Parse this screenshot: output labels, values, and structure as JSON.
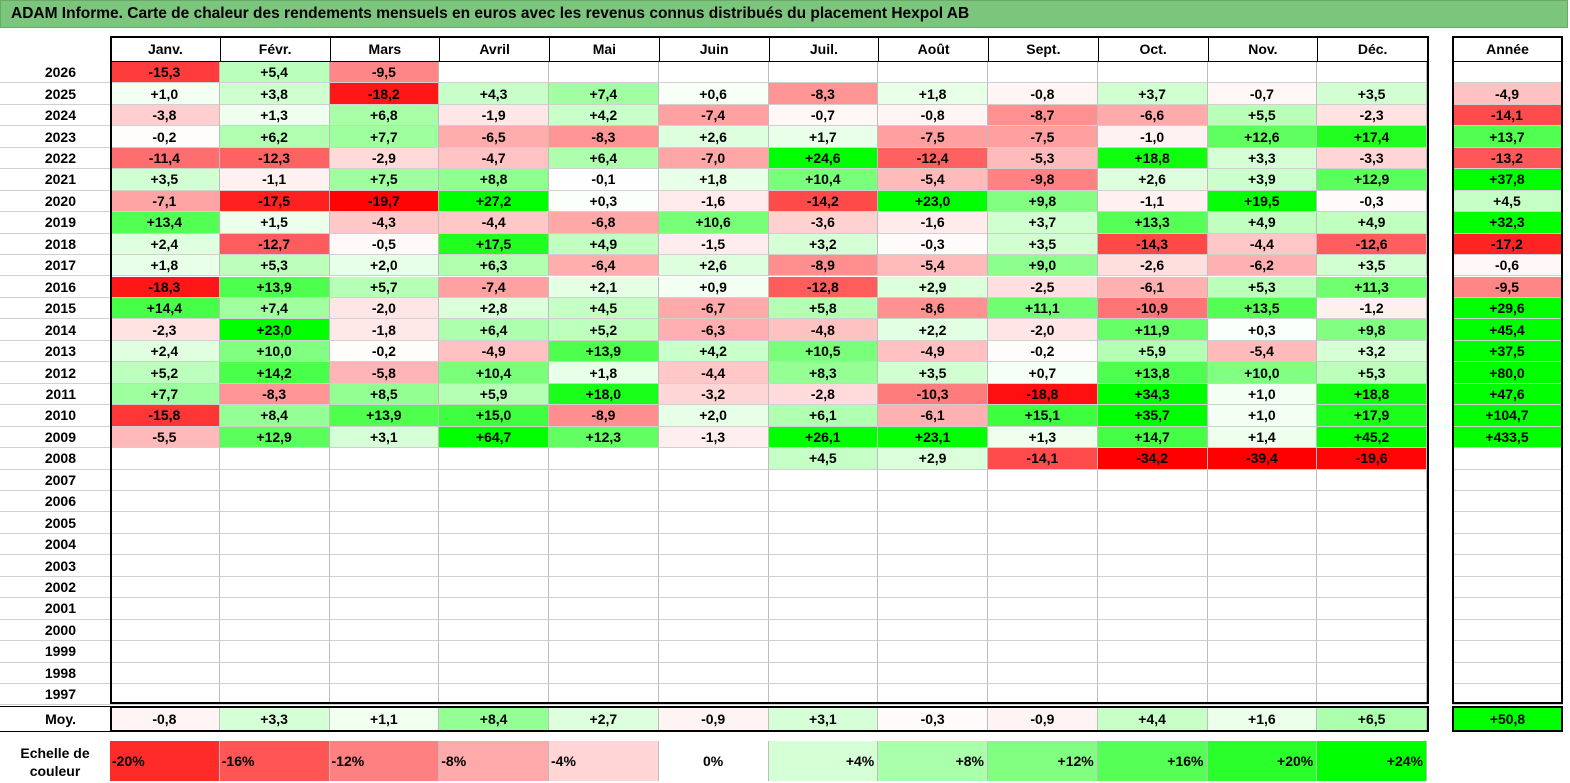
{
  "title": "ADAM Informe. Carte de chaleur des rendements mensuels en euros avec les revenus connus distribués du placement Hexpol AB",
  "chart_data": {
    "type": "heatmap",
    "title": "ADAM Informe. Carte de chaleur des rendements mensuels en euros avec les revenus connus distribués du placement Hexpol AB",
    "months": [
      "Janv.",
      "Févr.",
      "Mars",
      "Avril",
      "Mai",
      "Juin",
      "Juil.",
      "Août",
      "Sept.",
      "Oct.",
      "Nov.",
      "Déc."
    ],
    "year_header": "Année",
    "rows": [
      {
        "year": "2026",
        "values": [
          "-15,3",
          "+5,4",
          "-9,5",
          "",
          "",
          "",
          "",
          "",
          "",
          "",
          "",
          ""
        ],
        "annual": ""
      },
      {
        "year": "2025",
        "values": [
          "+1,0",
          "+3,8",
          "-18,2",
          "+4,3",
          "+7,4",
          "+0,6",
          "-8,3",
          "+1,8",
          "-0,8",
          "+3,7",
          "-0,7",
          "+3,5"
        ],
        "annual": "-4,9"
      },
      {
        "year": "2024",
        "values": [
          "-3,8",
          "+1,3",
          "+6,8",
          "-1,9",
          "+4,2",
          "-7,4",
          "-0,7",
          "-0,8",
          "-8,7",
          "-6,6",
          "+5,5",
          "-2,3"
        ],
        "annual": "-14,1"
      },
      {
        "year": "2023",
        "values": [
          "-0,2",
          "+6,2",
          "+7,7",
          "-6,5",
          "-8,3",
          "+2,6",
          "+1,7",
          "-7,5",
          "-7,5",
          "-1,0",
          "+12,6",
          "+17,4"
        ],
        "annual": "+13,7"
      },
      {
        "year": "2022",
        "values": [
          "-11,4",
          "-12,3",
          "-2,9",
          "-4,7",
          "+6,4",
          "-7,0",
          "+24,6",
          "-12,4",
          "-5,3",
          "+18,8",
          "+3,3",
          "-3,3"
        ],
        "annual": "-13,2"
      },
      {
        "year": "2021",
        "values": [
          "+3,5",
          "-1,1",
          "+7,5",
          "+8,8",
          "-0,1",
          "+1,8",
          "+10,4",
          "-5,4",
          "-9,8",
          "+2,6",
          "+3,9",
          "+12,9"
        ],
        "annual": "+37,8"
      },
      {
        "year": "2020",
        "values": [
          "-7,1",
          "-17,5",
          "-19,7",
          "+27,2",
          "+0,3",
          "-1,6",
          "-14,2",
          "+23,0",
          "+9,8",
          "-1,1",
          "+19,5",
          "-0,3"
        ],
        "annual": "+4,5"
      },
      {
        "year": "2019",
        "values": [
          "+13,4",
          "+1,5",
          "-4,3",
          "-4,4",
          "-6,8",
          "+10,6",
          "-3,6",
          "-1,6",
          "+3,7",
          "+13,3",
          "+4,9",
          "+4,9"
        ],
        "annual": "+32,3"
      },
      {
        "year": "2018",
        "values": [
          "+2,4",
          "-12,7",
          "-0,5",
          "+17,5",
          "+4,9",
          "-1,5",
          "+3,2",
          "-0,3",
          "+3,5",
          "-14,3",
          "-4,4",
          "-12,6"
        ],
        "annual": "-17,2"
      },
      {
        "year": "2017",
        "values": [
          "+1,8",
          "+5,3",
          "+2,0",
          "+6,3",
          "-6,4",
          "+2,6",
          "-8,9",
          "-5,4",
          "+9,0",
          "-2,6",
          "-6,2",
          "+3,5"
        ],
        "annual": "-0,6"
      },
      {
        "year": "2016",
        "values": [
          "-18,3",
          "+13,9",
          "+5,7",
          "-7,4",
          "+2,1",
          "+0,9",
          "-12,8",
          "+2,9",
          "-2,5",
          "-6,1",
          "+5,3",
          "+11,3"
        ],
        "annual": "-9,5"
      },
      {
        "year": "2015",
        "values": [
          "+14,4",
          "+7,4",
          "-2,0",
          "+2,8",
          "+4,5",
          "-6,7",
          "+5,8",
          "-8,6",
          "+11,1",
          "-10,9",
          "+13,5",
          "-1,2"
        ],
        "annual": "+29,6"
      },
      {
        "year": "2014",
        "values": [
          "-2,3",
          "+23,0",
          "-1,8",
          "+6,4",
          "+5,2",
          "-6,3",
          "-4,8",
          "+2,2",
          "-2,0",
          "+11,9",
          "+0,3",
          "+9,8"
        ],
        "annual": "+45,4"
      },
      {
        "year": "2013",
        "values": [
          "+2,4",
          "+10,0",
          "-0,2",
          "-4,9",
          "+13,9",
          "+4,2",
          "+10,5",
          "-4,9",
          "-0,2",
          "+5,9",
          "-5,4",
          "+3,2"
        ],
        "annual": "+37,5"
      },
      {
        "year": "2012",
        "values": [
          "+5,2",
          "+14,2",
          "-5,8",
          "+10,4",
          "+1,8",
          "-4,4",
          "+8,3",
          "+3,5",
          "+0,7",
          "+13,8",
          "+10,0",
          "+5,3"
        ],
        "annual": "+80,0"
      },
      {
        "year": "2011",
        "values": [
          "+7,7",
          "-8,3",
          "+8,5",
          "+5,9",
          "+18,0",
          "-3,2",
          "-2,8",
          "-10,3",
          "-18,8",
          "+34,3",
          "+1,0",
          "+18,8"
        ],
        "annual": "+47,6"
      },
      {
        "year": "2010",
        "values": [
          "-15,8",
          "+8,4",
          "+13,9",
          "+15,0",
          "-8,9",
          "+2,0",
          "+6,1",
          "-6,1",
          "+15,1",
          "+35,7",
          "+1,0",
          "+17,9"
        ],
        "annual": "+104,7"
      },
      {
        "year": "2009",
        "values": [
          "-5,5",
          "+12,9",
          "+3,1",
          "+64,7",
          "+12,3",
          "-1,3",
          "+26,1",
          "+23,1",
          "+1,3",
          "+14,7",
          "+1,4",
          "+45,2"
        ],
        "annual": "+433,5"
      },
      {
        "year": "2008",
        "values": [
          "",
          "",
          "",
          "",
          "",
          "",
          "+4,5",
          "+2,9",
          "-14,1",
          "-34,2",
          "-39,4",
          "-19,6"
        ],
        "annual": ""
      },
      {
        "year": "2007",
        "values": [
          "",
          "",
          "",
          "",
          "",
          "",
          "",
          "",
          "",
          "",
          "",
          ""
        ],
        "annual": ""
      },
      {
        "year": "2006",
        "values": [
          "",
          "",
          "",
          "",
          "",
          "",
          "",
          "",
          "",
          "",
          "",
          ""
        ],
        "annual": ""
      },
      {
        "year": "2005",
        "values": [
          "",
          "",
          "",
          "",
          "",
          "",
          "",
          "",
          "",
          "",
          "",
          ""
        ],
        "annual": ""
      },
      {
        "year": "2004",
        "values": [
          "",
          "",
          "",
          "",
          "",
          "",
          "",
          "",
          "",
          "",
          "",
          ""
        ],
        "annual": ""
      },
      {
        "year": "2003",
        "values": [
          "",
          "",
          "",
          "",
          "",
          "",
          "",
          "",
          "",
          "",
          "",
          ""
        ],
        "annual": ""
      },
      {
        "year": "2002",
        "values": [
          "",
          "",
          "",
          "",
          "",
          "",
          "",
          "",
          "",
          "",
          "",
          ""
        ],
        "annual": ""
      },
      {
        "year": "2001",
        "values": [
          "",
          "",
          "",
          "",
          "",
          "",
          "",
          "",
          "",
          "",
          "",
          ""
        ],
        "annual": ""
      },
      {
        "year": "2000",
        "values": [
          "",
          "",
          "",
          "",
          "",
          "",
          "",
          "",
          "",
          "",
          "",
          ""
        ],
        "annual": ""
      },
      {
        "year": "1999",
        "values": [
          "",
          "",
          "",
          "",
          "",
          "",
          "",
          "",
          "",
          "",
          "",
          ""
        ],
        "annual": ""
      },
      {
        "year": "1998",
        "values": [
          "",
          "",
          "",
          "",
          "",
          "",
          "",
          "",
          "",
          "",
          "",
          ""
        ],
        "annual": ""
      },
      {
        "year": "1997",
        "values": [
          "",
          "",
          "",
          "",
          "",
          "",
          "",
          "",
          "",
          "",
          "",
          ""
        ],
        "annual": ""
      }
    ],
    "average": {
      "label": "Moy.",
      "values": [
        "-0,8",
        "+3,3",
        "+1,1",
        "+8,4",
        "+2,7",
        "-0,9",
        "+3,1",
        "-0,3",
        "-0,9",
        "+4,4",
        "+1,6",
        "+6,5"
      ],
      "annual": "+50,8"
    },
    "color_scale": {
      "label_line1": "Echelle de",
      "label_line2": "couleur",
      "steps": [
        "-20%",
        "-16%",
        "-12%",
        "-8%",
        "-4%",
        "0%",
        "+4%",
        "+8%",
        "+12%",
        "+16%",
        "+20%",
        "+24%"
      ],
      "step_values": [
        -20,
        -16,
        -12,
        -8,
        -4,
        0,
        4,
        8,
        12,
        16,
        20,
        24
      ],
      "negative_color": "#ff0000",
      "positive_color": "#00ff00",
      "neutral_color": "#ffffff"
    }
  }
}
